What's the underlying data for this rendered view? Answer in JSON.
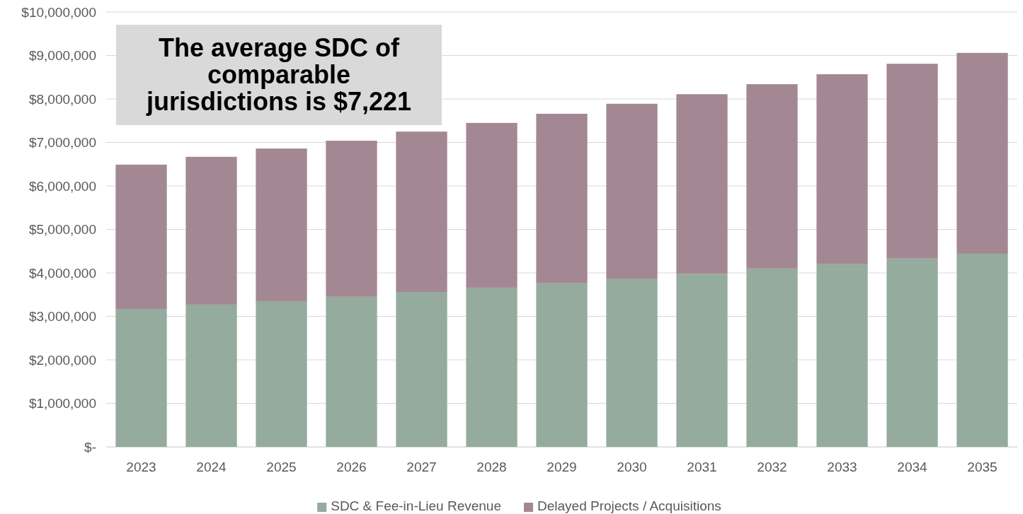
{
  "chart_data": {
    "type": "bar",
    "stacked": true,
    "categories": [
      "2023",
      "2024",
      "2025",
      "2026",
      "2027",
      "2028",
      "2029",
      "2030",
      "2031",
      "2032",
      "2033",
      "2034",
      "2035"
    ],
    "series": [
      {
        "name": "SDC & Fee-in-Lieu Revenue",
        "color": "#95ab9d",
        "values": [
          3170000,
          3270000,
          3350000,
          3450000,
          3560000,
          3660000,
          3760000,
          3870000,
          3980000,
          4100000,
          4200000,
          4330000,
          4440000
        ]
      },
      {
        "name": "Delayed Projects / Acquisitions",
        "color": "#a38893",
        "values": [
          3320000,
          3400000,
          3510000,
          3590000,
          3690000,
          3790000,
          3900000,
          4020000,
          4130000,
          4240000,
          4370000,
          4480000,
          4620000
        ]
      }
    ],
    "ylim": [
      0,
      10000000
    ],
    "yticks": [
      {
        "value": 0,
        "label": "$-"
      },
      {
        "value": 1000000,
        "label": "$1,000,000"
      },
      {
        "value": 2000000,
        "label": "$2,000,000"
      },
      {
        "value": 3000000,
        "label": "$3,000,000"
      },
      {
        "value": 4000000,
        "label": "$4,000,000"
      },
      {
        "value": 5000000,
        "label": "$5,000,000"
      },
      {
        "value": 6000000,
        "label": "$6,000,000"
      },
      {
        "value": 7000000,
        "label": "$7,000,000"
      },
      {
        "value": 8000000,
        "label": "$8,000,000"
      },
      {
        "value": 9000000,
        "label": "$9,000,000"
      },
      {
        "value": 10000000,
        "label": "$10,000,000"
      }
    ],
    "grid": "y",
    "legend": "bottom",
    "annotations": [
      "The average SDC of comparable jurisdictions is $7,221"
    ]
  }
}
